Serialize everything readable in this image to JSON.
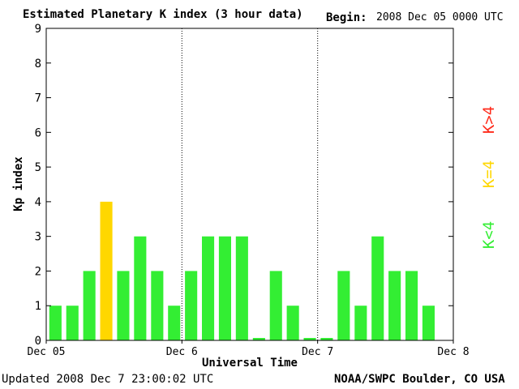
{
  "header": {
    "title": "Estimated Planetary K index (3 hour data)",
    "begin_label": "Begin:",
    "begin_value": "2008 Dec 05 0000 UTC"
  },
  "footer": {
    "updated": "Updated 2008 Dec  7 23:00:02 UTC",
    "credit": "NOAA/SWPC Boulder, CO USA"
  },
  "legend": [
    {
      "label": "K<4",
      "color": "#33ee33"
    },
    {
      "label": "K=4",
      "color": "#ffd700"
    },
    {
      "label": "K>4",
      "color": "#ff2a1a"
    }
  ],
  "chart_data": {
    "type": "bar",
    "xlabel": "Universal Time",
    "ylabel": "Kp index",
    "ylim": [
      0,
      9
    ],
    "yticks": [
      0,
      1,
      2,
      3,
      4,
      5,
      6,
      7,
      8,
      9
    ],
    "xtick_labels": [
      "Dec 05",
      "Dec 6",
      "Dec 7",
      "Dec 8"
    ],
    "day_separators": [
      "Dec 6",
      "Dec 7"
    ],
    "bins_per_day": 8,
    "grid": false,
    "values": [
      1,
      1,
      2,
      4,
      2,
      3,
      2,
      1,
      2,
      3,
      3,
      3,
      0.07,
      2,
      1,
      0.07,
      0.07,
      2,
      1,
      3,
      2,
      2,
      1
    ],
    "colors": [
      "#33ee33",
      "#33ee33",
      "#33ee33",
      "#ffd700",
      "#33ee33",
      "#33ee33",
      "#33ee33",
      "#33ee33",
      "#33ee33",
      "#33ee33",
      "#33ee33",
      "#33ee33",
      "#33ee33",
      "#33ee33",
      "#33ee33",
      "#33ee33",
      "#33ee33",
      "#33ee33",
      "#33ee33",
      "#33ee33",
      "#33ee33",
      "#33ee33",
      "#33ee33"
    ]
  }
}
